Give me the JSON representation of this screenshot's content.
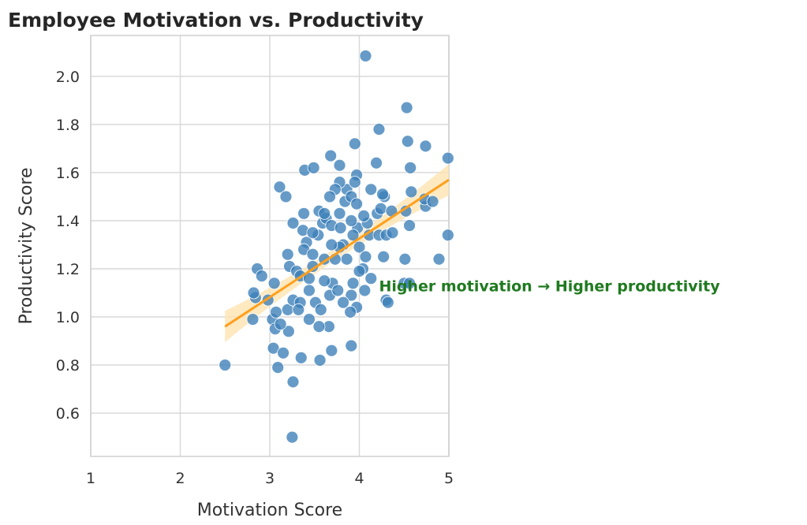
{
  "chart_data": {
    "type": "scatter",
    "title": "Employee Motivation vs. Productivity",
    "xlabel": "Motivation Score",
    "ylabel": "Productivity Score",
    "xlim": [
      1,
      5
    ],
    "ylim": [
      0.42,
      2.17
    ],
    "xticks": [
      "1",
      "2",
      "3",
      "4",
      "5"
    ],
    "xtick_values": [
      1,
      2,
      3,
      4,
      5
    ],
    "yticks": [
      "0.6",
      "0.8",
      "1.0",
      "1.2",
      "1.4",
      "1.6",
      "1.8",
      "2.0"
    ],
    "ytick_values": [
      0.6,
      0.8,
      1.0,
      1.2,
      1.4,
      1.6,
      1.8,
      2.0
    ],
    "grid": true,
    "point_color": "#3b7fb8",
    "regression": {
      "x": [
        2.5,
        5.0
      ],
      "y": [
        0.96,
        1.57
      ],
      "ci_halfwidth_ends": [
        0.065,
        0.065
      ],
      "ci_halfwidth_mid": 0.025,
      "color": "#ff9f1c",
      "band_color": "#ffe3b0"
    },
    "annotation": {
      "text": "Higher motivation → Higher productivity",
      "x": 4.22,
      "y": 1.13,
      "color": "#1f7a1f"
    },
    "points": [
      [
        2.5,
        0.8
      ],
      [
        3.25,
        0.5
      ],
      [
        4.07,
        2.085
      ],
      [
        4.53,
        1.87
      ],
      [
        4.54,
        1.73
      ],
      [
        4.74,
        1.71
      ],
      [
        4.99,
        1.66
      ],
      [
        4.99,
        1.34
      ],
      [
        4.89,
        1.24
      ],
      [
        4.51,
        1.24
      ],
      [
        4.22,
        1.78
      ],
      [
        3.95,
        1.72
      ],
      [
        3.68,
        1.67
      ],
      [
        3.39,
        1.61
      ],
      [
        3.49,
        1.62
      ],
      [
        3.11,
        1.54
      ],
      [
        3.18,
        1.5
      ],
      [
        4.19,
        1.64
      ],
      [
        4.57,
        1.62
      ],
      [
        3.78,
        1.63
      ],
      [
        3.97,
        1.59
      ],
      [
        2.81,
        0.99
      ],
      [
        2.84,
        1.08
      ],
      [
        2.86,
        1.2
      ],
      [
        2.82,
        1.1
      ],
      [
        2.91,
        1.17
      ],
      [
        3.05,
        1.14
      ],
      [
        3.03,
        0.99
      ],
      [
        3.06,
        0.95
      ],
      [
        3.04,
        0.87
      ],
      [
        3.09,
        0.79
      ],
      [
        3.26,
        0.73
      ],
      [
        3.35,
        0.83
      ],
      [
        3.56,
        0.82
      ],
      [
        3.69,
        0.86
      ],
      [
        3.91,
        0.88
      ],
      [
        3.15,
        0.85
      ],
      [
        3.21,
        0.94
      ],
      [
        3.12,
        0.97
      ],
      [
        3.2,
        1.03
      ],
      [
        3.26,
        1.07
      ],
      [
        3.34,
        1.06
      ],
      [
        3.22,
        1.21
      ],
      [
        3.2,
        1.26
      ],
      [
        3.26,
        1.39
      ],
      [
        3.38,
        1.43
      ],
      [
        3.37,
        1.36
      ],
      [
        3.41,
        1.31
      ],
      [
        3.38,
        1.28
      ],
      [
        3.55,
        1.44
      ],
      [
        3.59,
        1.39
      ],
      [
        3.63,
        1.41
      ],
      [
        3.69,
        1.38
      ],
      [
        3.54,
        1.34
      ],
      [
        3.48,
        1.26
      ],
      [
        3.44,
        1.11
      ],
      [
        3.51,
        1.06
      ],
      [
        3.57,
        1.03
      ],
      [
        3.67,
        1.09
      ],
      [
        3.7,
        1.14
      ],
      [
        3.66,
        0.96
      ],
      [
        3.55,
        0.96
      ],
      [
        3.44,
        0.99
      ],
      [
        3.32,
        1.03
      ],
      [
        3.86,
        1.24
      ],
      [
        3.82,
        1.3
      ],
      [
        3.79,
        1.37
      ],
      [
        3.78,
        1.43
      ],
      [
        3.84,
        1.48
      ],
      [
        3.86,
        1.53
      ],
      [
        3.91,
        1.5
      ],
      [
        3.97,
        1.47
      ],
      [
        3.98,
        1.37
      ],
      [
        3.93,
        1.34
      ],
      [
        4.0,
        1.29
      ],
      [
        4.04,
        1.2
      ],
      [
        4.0,
        1.19
      ],
      [
        3.93,
        1.14
      ],
      [
        3.91,
        1.09
      ],
      [
        3.97,
        1.04
      ],
      [
        3.9,
        1.02
      ],
      [
        4.13,
        1.16
      ],
      [
        4.07,
        1.25
      ],
      [
        4.11,
        1.34
      ],
      [
        4.09,
        1.39
      ],
      [
        4.13,
        1.53
      ],
      [
        4.2,
        1.43
      ],
      [
        4.24,
        1.45
      ],
      [
        4.22,
        1.34
      ],
      [
        4.27,
        1.25
      ],
      [
        4.3,
        1.34
      ],
      [
        4.28,
        1.5
      ],
      [
        4.26,
        1.51
      ],
      [
        4.3,
        1.07
      ],
      [
        4.32,
        1.06
      ],
      [
        4.37,
        1.35
      ],
      [
        4.36,
        1.44
      ],
      [
        4.52,
        1.44
      ],
      [
        4.56,
        1.38
      ],
      [
        4.58,
        1.52
      ],
      [
        4.74,
        1.46
      ],
      [
        4.73,
        1.49
      ],
      [
        4.82,
        1.48
      ],
      [
        4.5,
        1.14
      ],
      [
        4.56,
        1.14
      ],
      [
        3.78,
        1.56
      ],
      [
        3.73,
        1.53
      ],
      [
        3.67,
        1.5
      ],
      [
        3.61,
        1.43
      ],
      [
        3.48,
        1.35
      ],
      [
        3.3,
        1.19
      ],
      [
        3.34,
        1.17
      ],
      [
        3.48,
        1.21
      ],
      [
        3.61,
        1.24
      ],
      [
        3.73,
        1.24
      ],
      [
        3.78,
        1.29
      ],
      [
        3.69,
        1.3
      ],
      [
        3.61,
        1.15
      ],
      [
        3.76,
        1.11
      ],
      [
        3.82,
        1.06
      ],
      [
        4.06,
        1.11
      ],
      [
        3.44,
        1.16
      ],
      [
        2.98,
        1.07
      ],
      [
        3.07,
        1.02
      ],
      [
        4.05,
        1.42
      ],
      [
        3.91,
        1.4
      ],
      [
        3.95,
        1.56
      ]
    ]
  }
}
